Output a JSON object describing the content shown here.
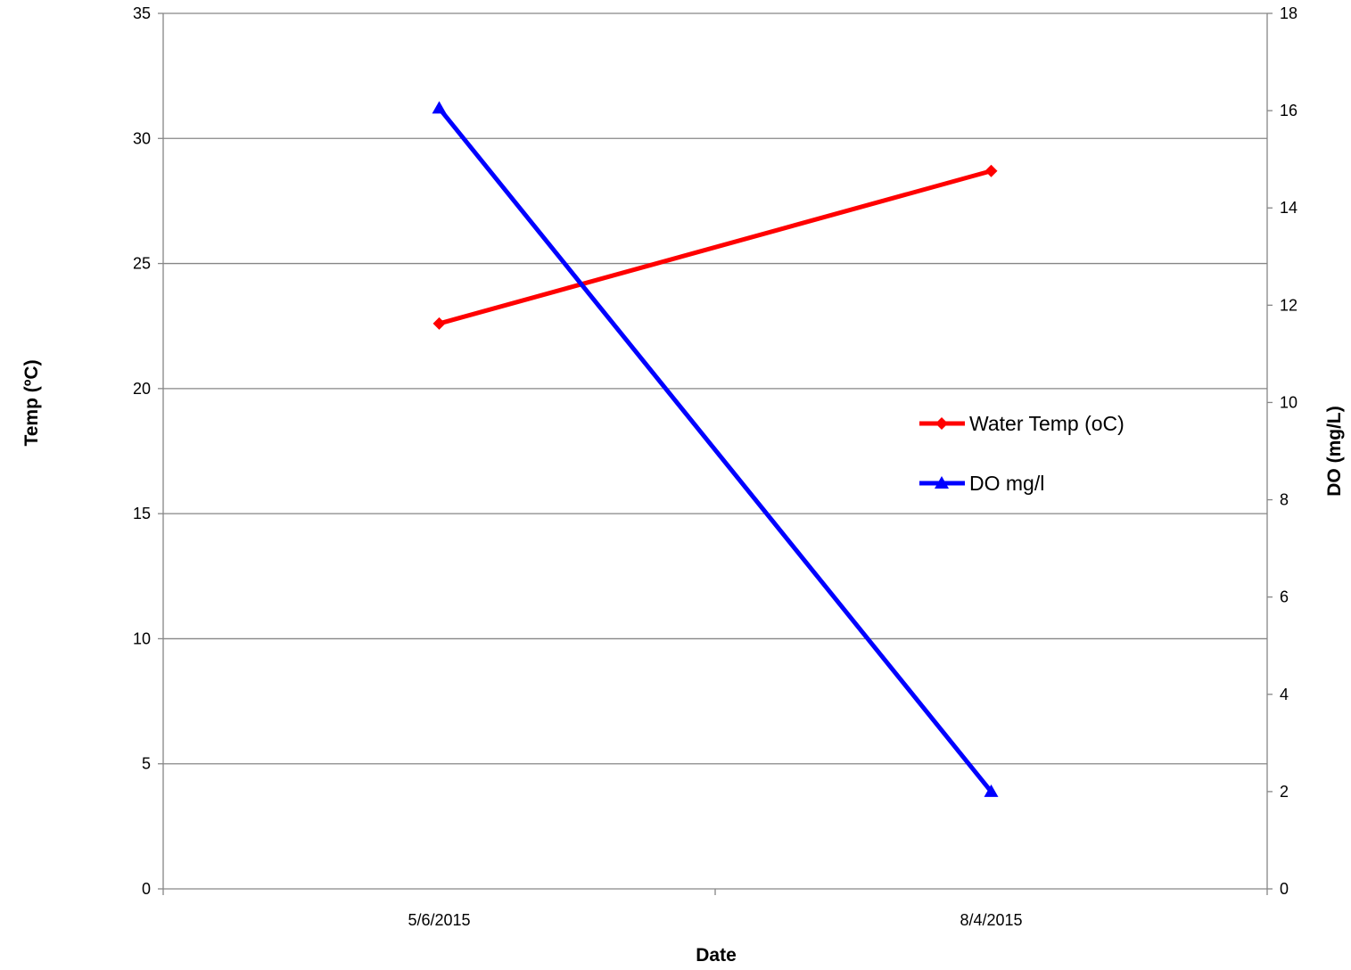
{
  "chart_data": {
    "type": "line",
    "categories": [
      "5/6/2015",
      "8/4/2015"
    ],
    "xlabel": "Date",
    "ylabel": "Temp (ºC)",
    "y2label": "DO (mg/L)",
    "ylim": [
      0,
      35
    ],
    "y2lim": [
      0,
      18
    ],
    "yticks": [
      "0",
      "5",
      "10",
      "15",
      "20",
      "25",
      "30",
      "35"
    ],
    "y2ticks": [
      "0",
      "2",
      "4",
      "6",
      "8",
      "10",
      "12",
      "14",
      "16",
      "18"
    ],
    "grid": true,
    "legend_position": "right",
    "series": [
      {
        "name": "Water Temp (oC)",
        "axis": "left",
        "values": [
          22.6,
          28.7
        ],
        "color": "#ff0000",
        "marker": "diamond"
      },
      {
        "name": "DO mg/l",
        "axis": "right",
        "values": [
          16.05,
          2.0
        ],
        "color": "#0000ff",
        "marker": "triangle"
      }
    ]
  }
}
